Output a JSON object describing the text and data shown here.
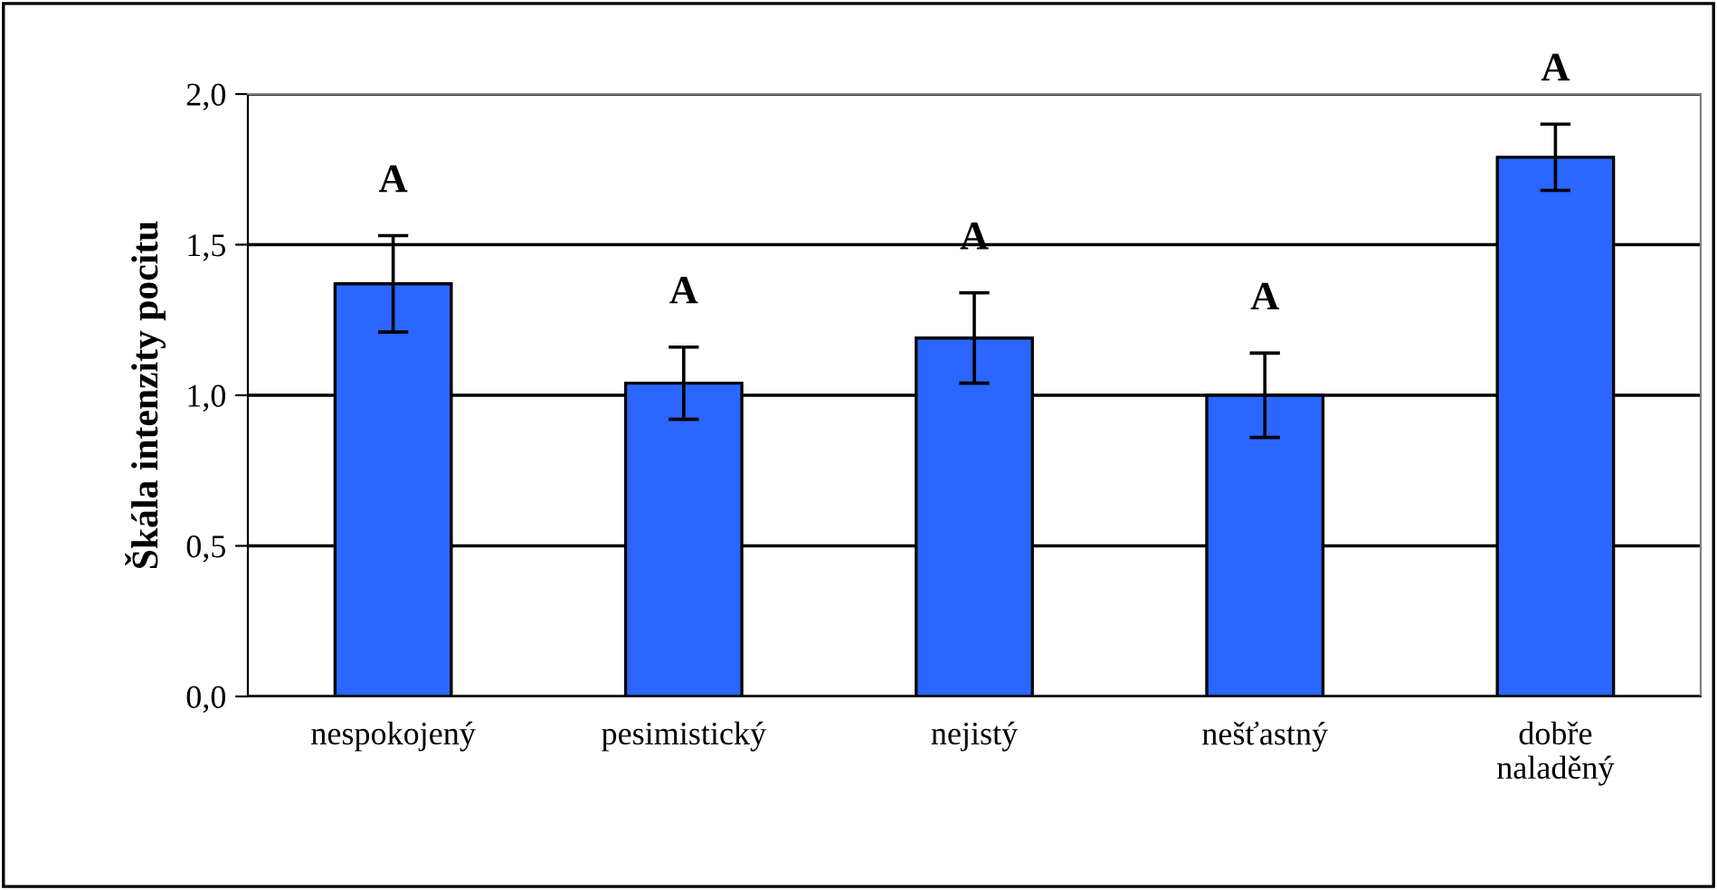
{
  "chart_data": {
    "type": "bar",
    "ylabel": "Škála intenzity pocitu",
    "categories": [
      "nespokojený",
      "pesimistický",
      "nejistý",
      "nešťastný",
      "dobře\nnaladěný"
    ],
    "values": [
      1.37,
      1.04,
      1.19,
      1.0,
      1.79
    ],
    "errors": [
      0.16,
      0.12,
      0.15,
      0.14,
      0.11
    ],
    "color": "#2a66ff",
    "ylim": [
      0,
      2
    ],
    "yticks": [
      {
        "value": 0,
        "label": "0,0"
      },
      {
        "value": 0.5,
        "label": "0,5"
      },
      {
        "value": 1,
        "label": "1,0"
      },
      {
        "value": 1.5,
        "label": "1,5"
      },
      {
        "value": 2,
        "label": "2,0"
      }
    ],
    "grid": "y",
    "annotations": [
      "A",
      "A",
      "A",
      "A",
      "A"
    ]
  }
}
